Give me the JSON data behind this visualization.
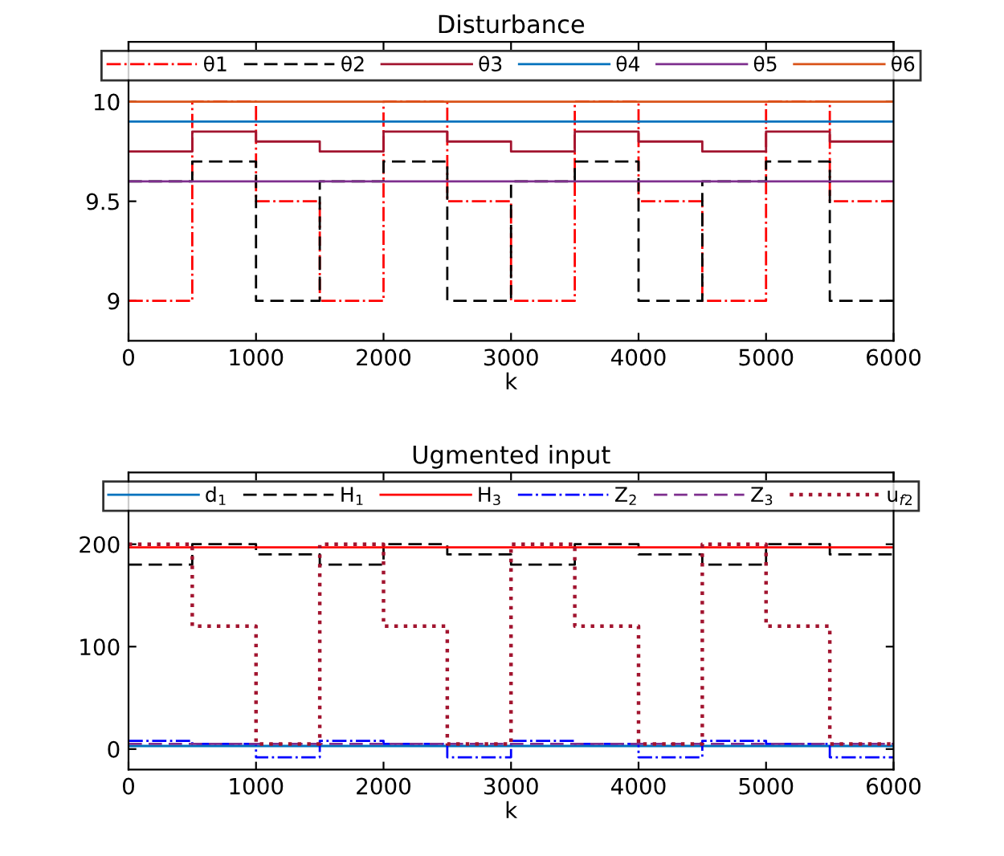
{
  "chart_data": [
    {
      "type": "step",
      "title": "Disturbance",
      "xlabel": "k",
      "legend": "top",
      "grid": false,
      "x": [
        0,
        500,
        1000,
        1500,
        2000,
        2500,
        3000,
        3500,
        4000,
        4500,
        5000,
        5500,
        6000
      ],
      "xlim": [
        0,
        6000
      ],
      "xticks": [
        0,
        1000,
        2000,
        3000,
        4000,
        5000,
        6000
      ],
      "ylim": [
        8.8,
        10.3
      ],
      "yticks": [
        9,
        9.5,
        10
      ],
      "series": [
        {
          "name": "θ1",
          "color": "#ff0000",
          "line_style": "dashdot",
          "values": [
            9,
            10,
            9.5,
            9,
            10,
            9.5,
            9,
            10,
            9.5,
            9,
            10,
            9.5,
            9.5
          ]
        },
        {
          "name": "θ2",
          "color": "#000000",
          "line_style": "dashed",
          "values": [
            9.6,
            9.7,
            9,
            9.6,
            9.7,
            9,
            9.6,
            9.7,
            9,
            9.6,
            9.7,
            9,
            9
          ]
        },
        {
          "name": "θ3",
          "color": "#a2142f",
          "line_style": "solid",
          "values": [
            9.75,
            9.85,
            9.8,
            9.75,
            9.85,
            9.8,
            9.75,
            9.85,
            9.8,
            9.75,
            9.85,
            9.8,
            9.8
          ]
        },
        {
          "name": "θ4",
          "color": "#0072bd",
          "line_style": "solid",
          "values": [
            9.9,
            9.9,
            9.9,
            9.9,
            9.9,
            9.9,
            9.9,
            9.9,
            9.9,
            9.9,
            9.9,
            9.9,
            9.9
          ]
        },
        {
          "name": "θ5",
          "color": "#7e2f8e",
          "line_style": "solid",
          "values": [
            9.6,
            9.6,
            9.6,
            9.6,
            9.6,
            9.6,
            9.6,
            9.6,
            9.6,
            9.6,
            9.6,
            9.6,
            9.6
          ]
        },
        {
          "name": "θ6",
          "color": "#d95319",
          "line_style": "solid",
          "values": [
            10,
            10,
            10,
            10,
            10,
            10,
            10,
            10,
            10,
            10,
            10,
            10,
            10
          ]
        }
      ]
    },
    {
      "type": "step",
      "title": "Ugmented input",
      "xlabel": "k",
      "legend": "top",
      "grid": false,
      "x": [
        0,
        500,
        1000,
        1500,
        2000,
        2500,
        3000,
        3500,
        4000,
        4500,
        5000,
        5500,
        6000
      ],
      "xlim": [
        0,
        6000
      ],
      "xticks": [
        0,
        1000,
        2000,
        3000,
        4000,
        5000,
        6000
      ],
      "ylim": [
        -20,
        270
      ],
      "yticks": [
        0,
        100,
        200
      ],
      "series": [
        {
          "name": "d$_{1}$",
          "color": "#0072bd",
          "line_style": "solid",
          "values": [
            3,
            3,
            3,
            3,
            3,
            3,
            3,
            3,
            3,
            3,
            3,
            3,
            3
          ]
        },
        {
          "name": "H$_{1}$",
          "color": "#000000",
          "line_style": "dashed",
          "values": [
            180,
            200,
            190,
            180,
            200,
            190,
            180,
            200,
            190,
            180,
            200,
            190,
            190
          ]
        },
        {
          "name": "H$_{3}$",
          "color": "#ff0000",
          "line_style": "solid",
          "values": [
            197,
            197,
            197,
            197,
            197,
            197,
            197,
            197,
            197,
            197,
            197,
            197,
            197
          ]
        },
        {
          "name": "Z$_{2}$",
          "color": "#0000ff",
          "line_style": "dashdot",
          "values": [
            8,
            5,
            -8,
            8,
            5,
            -8,
            8,
            5,
            -8,
            8,
            5,
            -8,
            -8
          ]
        },
        {
          "name": "Z$_{3}$",
          "color": "#7e2f8e",
          "line_style": "dashed",
          "values": [
            5,
            5,
            5,
            5,
            5,
            5,
            5,
            5,
            5,
            5,
            5,
            5,
            5
          ]
        },
        {
          "name": "u$_{f2}$",
          "color": "#a2142f",
          "line_style": "dotted",
          "values": [
            200,
            120,
            5,
            200,
            120,
            5,
            200,
            120,
            5,
            200,
            120,
            5,
            5
          ]
        }
      ]
    }
  ]
}
